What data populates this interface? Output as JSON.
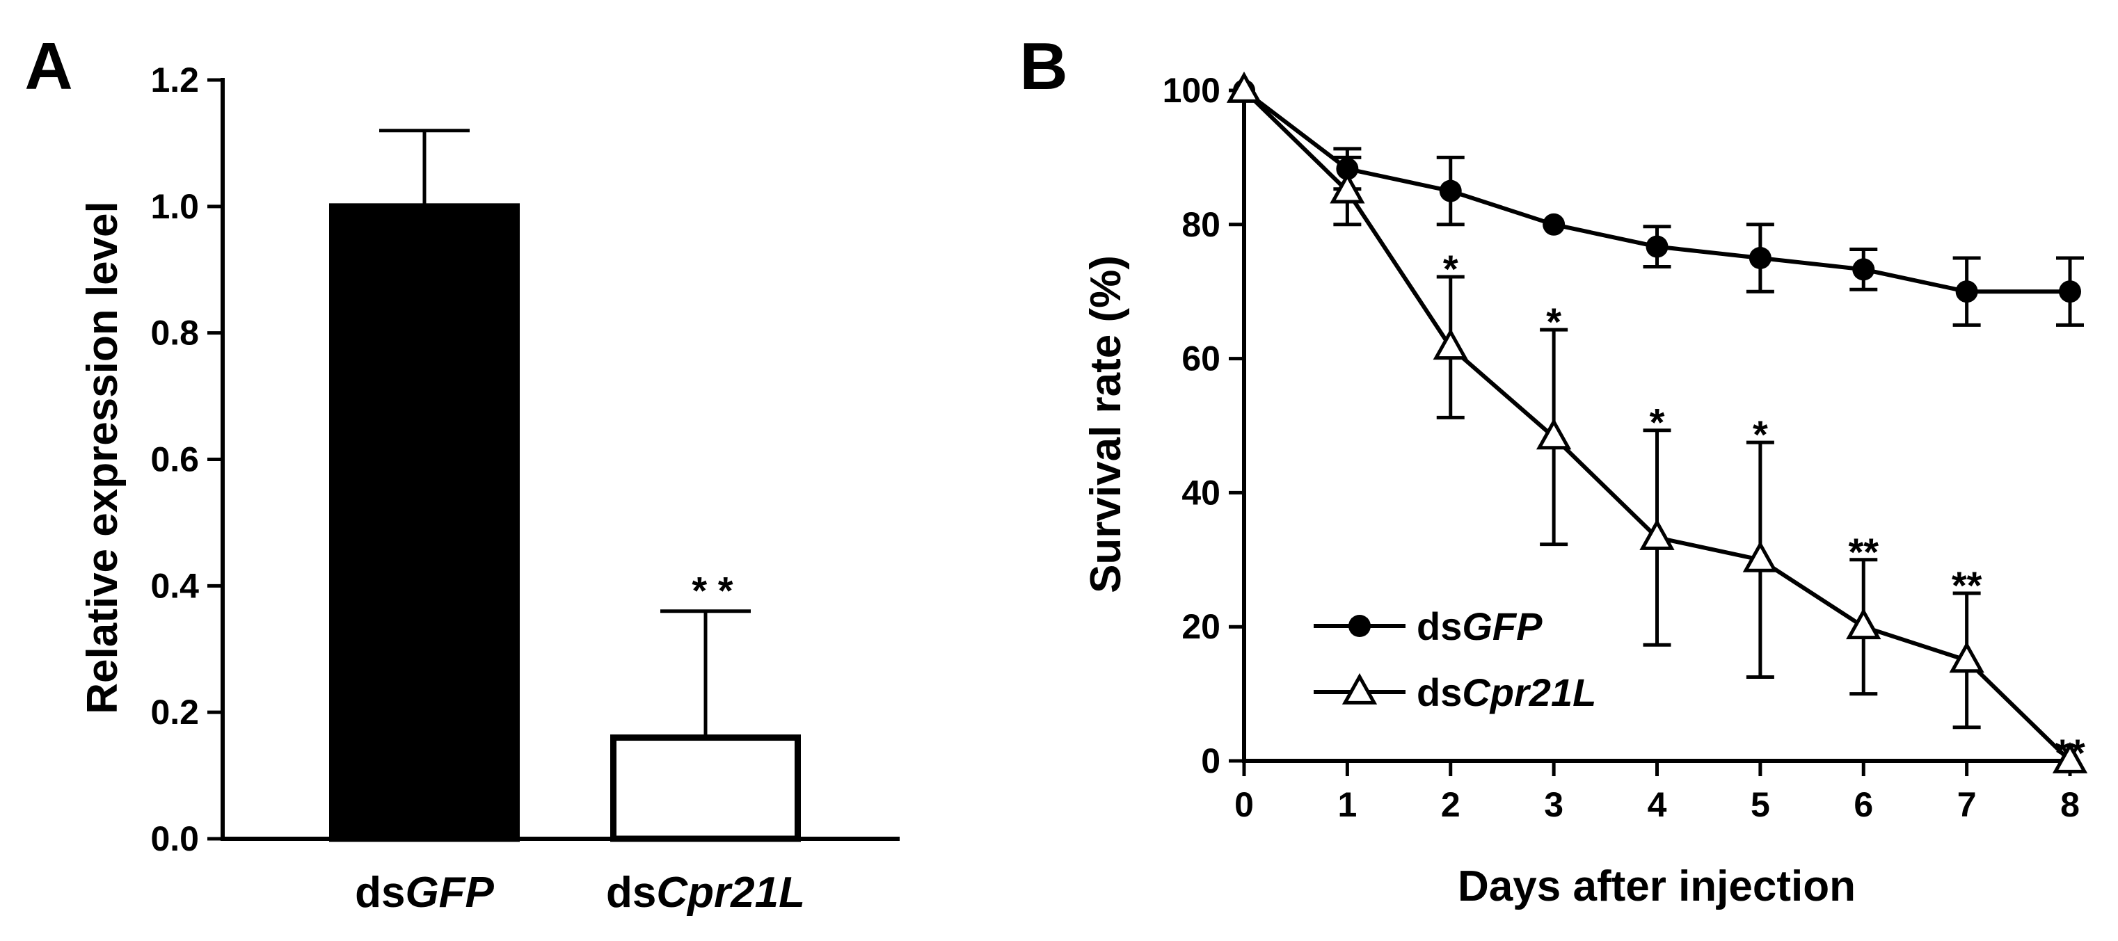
{
  "chart_data": [
    {
      "panel": "A",
      "type": "bar",
      "categories": [
        {
          "prefix": "ds",
          "gene": "GFP"
        },
        {
          "prefix": "ds",
          "gene": "Cpr21L"
        }
      ],
      "values": [
        1.0,
        0.16
      ],
      "errors": [
        0.12,
        0.2
      ],
      "bar_colors": [
        "#000000",
        "#ffffff"
      ],
      "significance": [
        "",
        "* *"
      ],
      "ylabel": "Relative expression level",
      "ylim": [
        0,
        1.2
      ],
      "yticks": [
        "0.0",
        "0.2",
        "0.4",
        "0.6",
        "0.8",
        "1.0",
        "1.2"
      ],
      "grid": false
    },
    {
      "panel": "B",
      "type": "line",
      "x": [
        0,
        1,
        2,
        3,
        4,
        5,
        6,
        7,
        8
      ],
      "xticks": [
        "0",
        "1",
        "2",
        "3",
        "4",
        "5",
        "6",
        "7",
        "8"
      ],
      "xlabel": "Days after injection",
      "ylabel": "Survival rate (%)",
      "ylim": [
        0,
        100
      ],
      "yticks": [
        "0",
        "20",
        "40",
        "60",
        "80",
        "100"
      ],
      "grid": false,
      "legend_position": "bottom-left",
      "series": [
        {
          "name_prefix": "ds",
          "name_gene": "GFP",
          "marker": "filled-circle",
          "values": [
            100,
            88.3,
            85,
            80,
            76.7,
            75,
            73.3,
            70,
            70
          ],
          "errors": [
            0,
            3,
            5,
            0,
            3,
            5,
            3,
            5,
            5
          ]
        },
        {
          "name_prefix": "ds",
          "name_gene": "Cpr21L",
          "marker": "open-triangle",
          "values": [
            100,
            85,
            61.7,
            48.3,
            33.3,
            30,
            20,
            15,
            0
          ],
          "errors": [
            0,
            5,
            10.5,
            16,
            16,
            17.5,
            10,
            10,
            0
          ],
          "significance": [
            "",
            "",
            "*",
            "*",
            "*",
            "*",
            "**",
            "**",
            "**"
          ]
        }
      ]
    }
  ]
}
